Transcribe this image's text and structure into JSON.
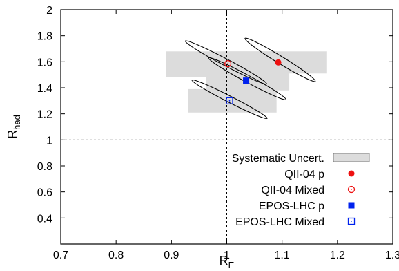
{
  "chart_data": {
    "type": "scatter",
    "xlabel": {
      "main": "R",
      "sub": "E"
    },
    "ylabel": {
      "main": "R",
      "sub": "had"
    },
    "xlim": [
      0.7,
      1.3
    ],
    "ylim": [
      0.2,
      2.0
    ],
    "xticks": [
      0.7,
      0.8,
      0.9,
      1,
      1.1,
      1.2,
      1.3
    ],
    "yticks": [
      0.4,
      0.6,
      0.8,
      1,
      1.2,
      1.4,
      1.6,
      1.8,
      2
    ],
    "reference_lines": {
      "x": 1,
      "y": 1,
      "style": "dashed"
    },
    "grid": false,
    "legend_position": "bottom-right",
    "systematic_band": {
      "name": "Systematic Uncert.",
      "color": "#dcdcdc",
      "boxes": [
        {
          "x": [
            0.89,
            1.09
          ],
          "y": [
            1.48,
            1.68
          ]
        },
        {
          "x": [
            1.0,
            1.18
          ],
          "y": [
            1.51,
            1.68
          ]
        },
        {
          "x": [
            0.963,
            1.113
          ],
          "y": [
            1.38,
            1.55
          ]
        },
        {
          "x": [
            0.93,
            1.09
          ],
          "y": [
            1.21,
            1.39
          ]
        }
      ]
    },
    "series": [
      {
        "name": "QII-04 p",
        "marker": "filled-circle",
        "color": "#ee1111",
        "point": [
          1.093,
          1.595
        ],
        "contour": {
          "x1": 1.033,
          "y1": 1.78,
          "x2": 1.16,
          "y2": 1.45,
          "width": 0.035
        }
      },
      {
        "name": "QII-04 Mixed",
        "marker": "open-circle",
        "color": "#ee1111",
        "point": [
          1.002,
          1.585
        ],
        "contour": {
          "x1": 0.925,
          "y1": 1.76,
          "x2": 1.072,
          "y2": 1.43,
          "width": 0.033
        }
      },
      {
        "name": "EPOS-LHC p",
        "marker": "filled-square",
        "color": "#0022ee",
        "point": [
          1.035,
          1.455
        ],
        "contour": {
          "x1": 0.967,
          "y1": 1.63,
          "x2": 1.107,
          "y2": 1.31,
          "width": 0.033
        }
      },
      {
        "name": "EPOS-LHC Mixed",
        "marker": "open-square-dot",
        "color": "#0022ee",
        "point": [
          1.005,
          1.3
        ],
        "contour": {
          "x1": 0.937,
          "y1": 1.46,
          "x2": 1.073,
          "y2": 1.165,
          "width": 0.03
        }
      }
    ]
  }
}
